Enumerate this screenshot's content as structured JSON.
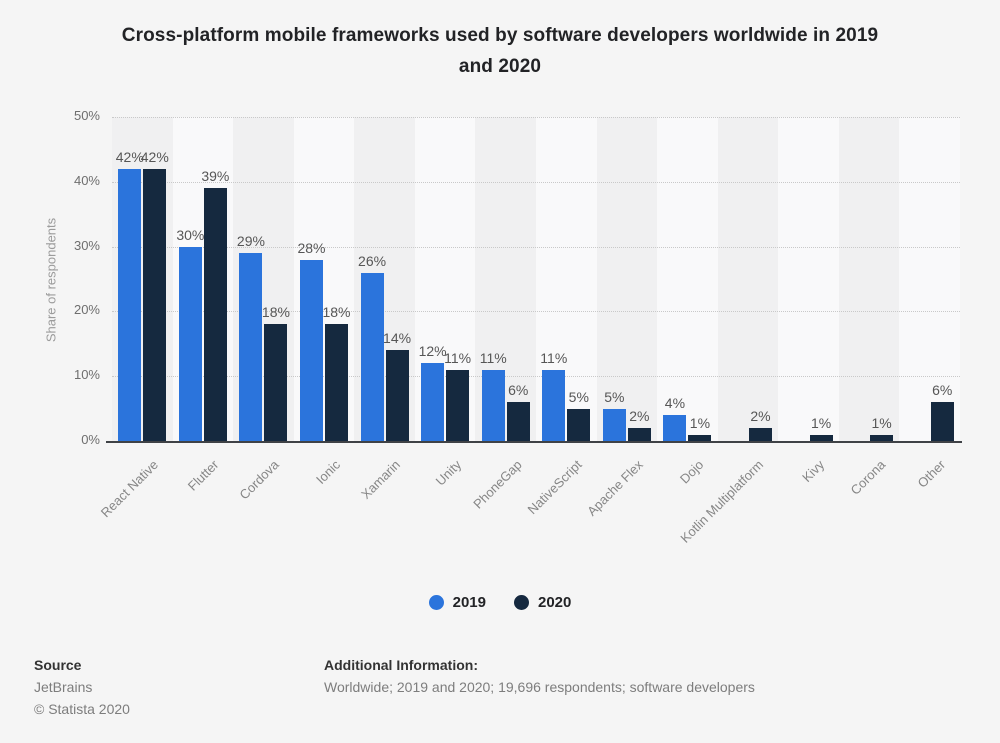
{
  "title": {
    "line1": "Cross-platform mobile frameworks used by software developers worldwide in 2019",
    "line2": "and 2020"
  },
  "chart_data": {
    "type": "bar",
    "title": "Cross-platform mobile frameworks used by software developers worldwide in 2019 and 2020",
    "xlabel": "",
    "ylabel": "Share of respondents",
    "ylim": [
      0,
      50
    ],
    "yticks": [
      "50%",
      "40%",
      "30%",
      "20%",
      "10%",
      "0%"
    ],
    "grid": true,
    "legend_position": "bottom-center",
    "value_label_format": "{v}%",
    "categories": [
      "React Native",
      "Flutter",
      "Cordova",
      "Ionic",
      "Xamarin",
      "Unity",
      "PhoneGap",
      "NativeScript",
      "Apache Flex",
      "Dojo",
      "Kotlin Multiplatform",
      "Kivy",
      "Corona",
      "Other"
    ],
    "series": [
      {
        "name": "2019",
        "color": "#2b74dc",
        "values": [
          42,
          30,
          29,
          28,
          26,
          12,
          11,
          11,
          5,
          4,
          null,
          null,
          null,
          null
        ]
      },
      {
        "name": "2020",
        "color": "#15293f",
        "values": [
          42,
          39,
          18,
          18,
          14,
          11,
          6,
          5,
          2,
          1,
          2,
          1,
          1,
          6
        ]
      }
    ]
  },
  "footer": {
    "source_label": "Source",
    "source_value": "JetBrains",
    "copyright": "© Statista 2020",
    "additional_label": "Additional Information:",
    "additional_value": "Worldwide; 2019 and 2020; 19,696 respondents; software developers"
  }
}
